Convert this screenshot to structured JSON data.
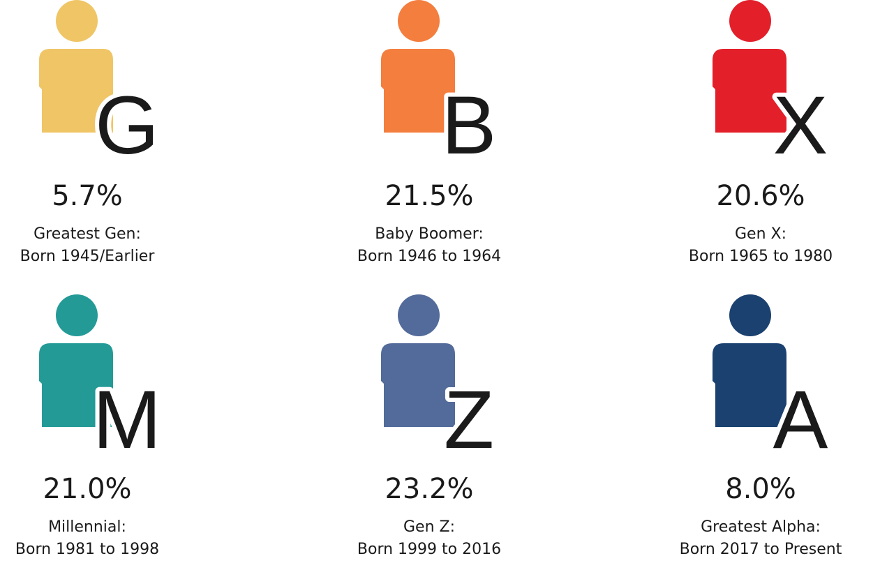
{
  "items": [
    {
      "letter": "G",
      "value": "5.7%",
      "label": [
        "Greatest Gen:",
        "Born 1945/Earlier"
      ],
      "color": "#f0c566"
    },
    {
      "letter": "B",
      "value": "21.5%",
      "label": [
        "Baby Boomer:",
        "Born 1946 to 1964"
      ],
      "color": "#f37e3e"
    },
    {
      "letter": "X",
      "value": "20.6%",
      "label": [
        "Gen X:",
        "Born 1965 to 1980"
      ],
      "color": "#e31f2a"
    },
    {
      "letter": "M",
      "value": "21.0%",
      "label": [
        "Millennial:",
        "Born 1981 to 1998"
      ],
      "color": "#249a97"
    },
    {
      "letter": "Z",
      "value": "23.2%",
      "label": [
        "Gen Z:",
        "Born 1999 to 2016"
      ],
      "color": "#536b9a"
    },
    {
      "letter": "A",
      "value": "8.0%",
      "label": [
        "Greatest Alpha:",
        "Born 2017 to Present"
      ],
      "color": "#1a4170"
    }
  ]
}
